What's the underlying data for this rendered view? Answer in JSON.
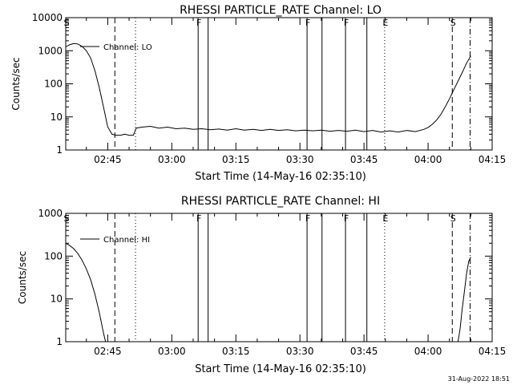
{
  "footer_stamp": "31-Aug-2022 18:51",
  "chart_data": [
    {
      "type": "line",
      "title": "RHESSI PARTICLE_RATE Channel: LO",
      "xlabel": "Start Time (14-May-16 02:35:10)",
      "ylabel": "Counts/sec",
      "y_scale": "log",
      "ylim": [
        1,
        10000
      ],
      "y_ticks": [
        1,
        10,
        100,
        1000,
        10000
      ],
      "y_tick_labels": [
        "1",
        "10",
        "100",
        "1000",
        "10000"
      ],
      "xlim": [
        "02:35:10",
        "04:15:00"
      ],
      "x_ticks": [
        "02:45",
        "03:00",
        "03:15",
        "03:30",
        "03:45",
        "04:00",
        "04:15"
      ],
      "legend": {
        "label": "Channel: LO",
        "position": "top-left"
      },
      "markers": [
        {
          "label": "S",
          "time": "02:35:10",
          "style": "solid"
        },
        {
          "label": "",
          "time": "02:46:40",
          "style": "dashed"
        },
        {
          "label": "",
          "time": "02:51:30",
          "style": "dotted"
        },
        {
          "label": "F",
          "time": "03:06:10",
          "style": "solid"
        },
        {
          "label": "",
          "time": "03:08:30",
          "style": "solid"
        },
        {
          "label": "F",
          "time": "03:31:40",
          "style": "solid"
        },
        {
          "label": "",
          "time": "03:35:10",
          "style": "solid"
        },
        {
          "label": "F",
          "time": "03:40:40",
          "style": "solid"
        },
        {
          "label": "",
          "time": "03:45:40",
          "style": "solid"
        },
        {
          "label": "E",
          "time": "03:49:50",
          "style": "dotted"
        },
        {
          "label": "S",
          "time": "04:05:40",
          "style": "dashed"
        },
        {
          "label": "",
          "time": "04:09:50",
          "style": "dashdot"
        }
      ],
      "series": [
        {
          "name": "Channel: LO",
          "points": [
            [
              "02:35:10",
              1300
            ],
            [
              "02:36:00",
              1500
            ],
            [
              "02:37:00",
              1650
            ],
            [
              "02:38:00",
              1600
            ],
            [
              "02:39:00",
              1350
            ],
            [
              "02:40:00",
              1000
            ],
            [
              "02:41:00",
              600
            ],
            [
              "02:42:00",
              250
            ],
            [
              "02:43:00",
              80
            ],
            [
              "02:44:00",
              20
            ],
            [
              "02:45:00",
              5
            ],
            [
              "02:46:00",
              3
            ],
            [
              "02:47:00",
              2.8
            ],
            [
              "02:48:00",
              2.8
            ],
            [
              "02:49:00",
              3.0
            ],
            [
              "02:50:00",
              2.8
            ],
            [
              "02:51:00",
              2.8
            ],
            [
              "02:51:40",
              4.6
            ],
            [
              "02:53:00",
              4.9
            ],
            [
              "02:55:00",
              5.2
            ],
            [
              "02:57:00",
              4.6
            ],
            [
              "02:59:00",
              4.9
            ],
            [
              "03:01:00",
              4.4
            ],
            [
              "03:03:00",
              4.6
            ],
            [
              "03:05:00",
              4.2
            ],
            [
              "03:07:00",
              4.4
            ],
            [
              "03:09:00",
              4.1
            ],
            [
              "03:11:00",
              4.3
            ],
            [
              "03:13:00",
              4.0
            ],
            [
              "03:15:00",
              4.4
            ],
            [
              "03:17:00",
              4.0
            ],
            [
              "03:19:00",
              4.2
            ],
            [
              "03:21:00",
              3.9
            ],
            [
              "03:23:00",
              4.2
            ],
            [
              "03:25:00",
              3.9
            ],
            [
              "03:27:00",
              4.1
            ],
            [
              "03:29:00",
              3.8
            ],
            [
              "03:31:00",
              4.0
            ],
            [
              "03:33:00",
              3.8
            ],
            [
              "03:35:00",
              4.0
            ],
            [
              "03:37:00",
              3.7
            ],
            [
              "03:39:00",
              3.9
            ],
            [
              "03:41:00",
              3.7
            ],
            [
              "03:43:00",
              4.0
            ],
            [
              "03:45:00",
              3.6
            ],
            [
              "03:47:00",
              3.9
            ],
            [
              "03:49:00",
              3.5
            ],
            [
              "03:51:00",
              3.8
            ],
            [
              "03:53:00",
              3.5
            ],
            [
              "03:55:00",
              3.9
            ],
            [
              "03:57:00",
              3.6
            ],
            [
              "03:59:00",
              4.2
            ],
            [
              "04:00:00",
              4.8
            ],
            [
              "04:01:00",
              6
            ],
            [
              "04:02:00",
              8
            ],
            [
              "04:03:00",
              12
            ],
            [
              "04:04:00",
              20
            ],
            [
              "04:05:00",
              35
            ],
            [
              "04:06:00",
              65
            ],
            [
              "04:07:00",
              120
            ],
            [
              "04:08:00",
              220
            ],
            [
              "04:09:00",
              420
            ],
            [
              "04:10:00",
              700
            ]
          ]
        }
      ]
    },
    {
      "type": "line",
      "title": "RHESSI PARTICLE_RATE Channel: HI",
      "xlabel": "Start Time (14-May-16 02:35:10)",
      "ylabel": "Counts/sec",
      "y_scale": "log",
      "ylim": [
        1,
        1000
      ],
      "y_ticks": [
        1,
        10,
        100,
        1000
      ],
      "y_tick_labels": [
        "1",
        "10",
        "100",
        "1000"
      ],
      "xlim": [
        "02:35:10",
        "04:15:00"
      ],
      "x_ticks": [
        "02:45",
        "03:00",
        "03:15",
        "03:30",
        "03:45",
        "04:00",
        "04:15"
      ],
      "legend": {
        "label": "Channel: HI",
        "position": "top-left"
      },
      "markers": [
        {
          "label": "S",
          "time": "02:35:10",
          "style": "solid"
        },
        {
          "label": "",
          "time": "02:46:40",
          "style": "dashed"
        },
        {
          "label": "",
          "time": "02:51:30",
          "style": "dotted"
        },
        {
          "label": "F",
          "time": "03:06:10",
          "style": "solid"
        },
        {
          "label": "",
          "time": "03:08:30",
          "style": "solid"
        },
        {
          "label": "F",
          "time": "03:31:40",
          "style": "solid"
        },
        {
          "label": "",
          "time": "03:35:10",
          "style": "solid"
        },
        {
          "label": "F",
          "time": "03:40:40",
          "style": "solid"
        },
        {
          "label": "",
          "time": "03:45:40",
          "style": "solid"
        },
        {
          "label": "E",
          "time": "03:49:50",
          "style": "dotted"
        },
        {
          "label": "S",
          "time": "04:05:40",
          "style": "dashed"
        },
        {
          "label": "",
          "time": "04:09:50",
          "style": "dashdot"
        }
      ],
      "series": [
        {
          "name": "Channel: HI",
          "points": [
            [
              "02:35:10",
              200
            ],
            [
              "02:36:00",
              180
            ],
            [
              "02:37:00",
              150
            ],
            [
              "02:38:00",
              115
            ],
            [
              "02:39:00",
              80
            ],
            [
              "02:40:00",
              50
            ],
            [
              "02:41:00",
              28
            ],
            [
              "02:42:00",
              13
            ],
            [
              "02:43:00",
              5
            ],
            [
              "02:44:00",
              1.6
            ],
            [
              "02:44:30",
              1.0
            ]
          ]
        },
        {
          "name": "",
          "points": [
            [
              "04:07:00",
              1.0
            ],
            [
              "04:07:30",
              2
            ],
            [
              "04:08:00",
              6
            ],
            [
              "04:08:30",
              15
            ],
            [
              "04:09:00",
              38
            ],
            [
              "04:09:30",
              75
            ],
            [
              "04:10:00",
              95
            ]
          ]
        }
      ]
    }
  ]
}
